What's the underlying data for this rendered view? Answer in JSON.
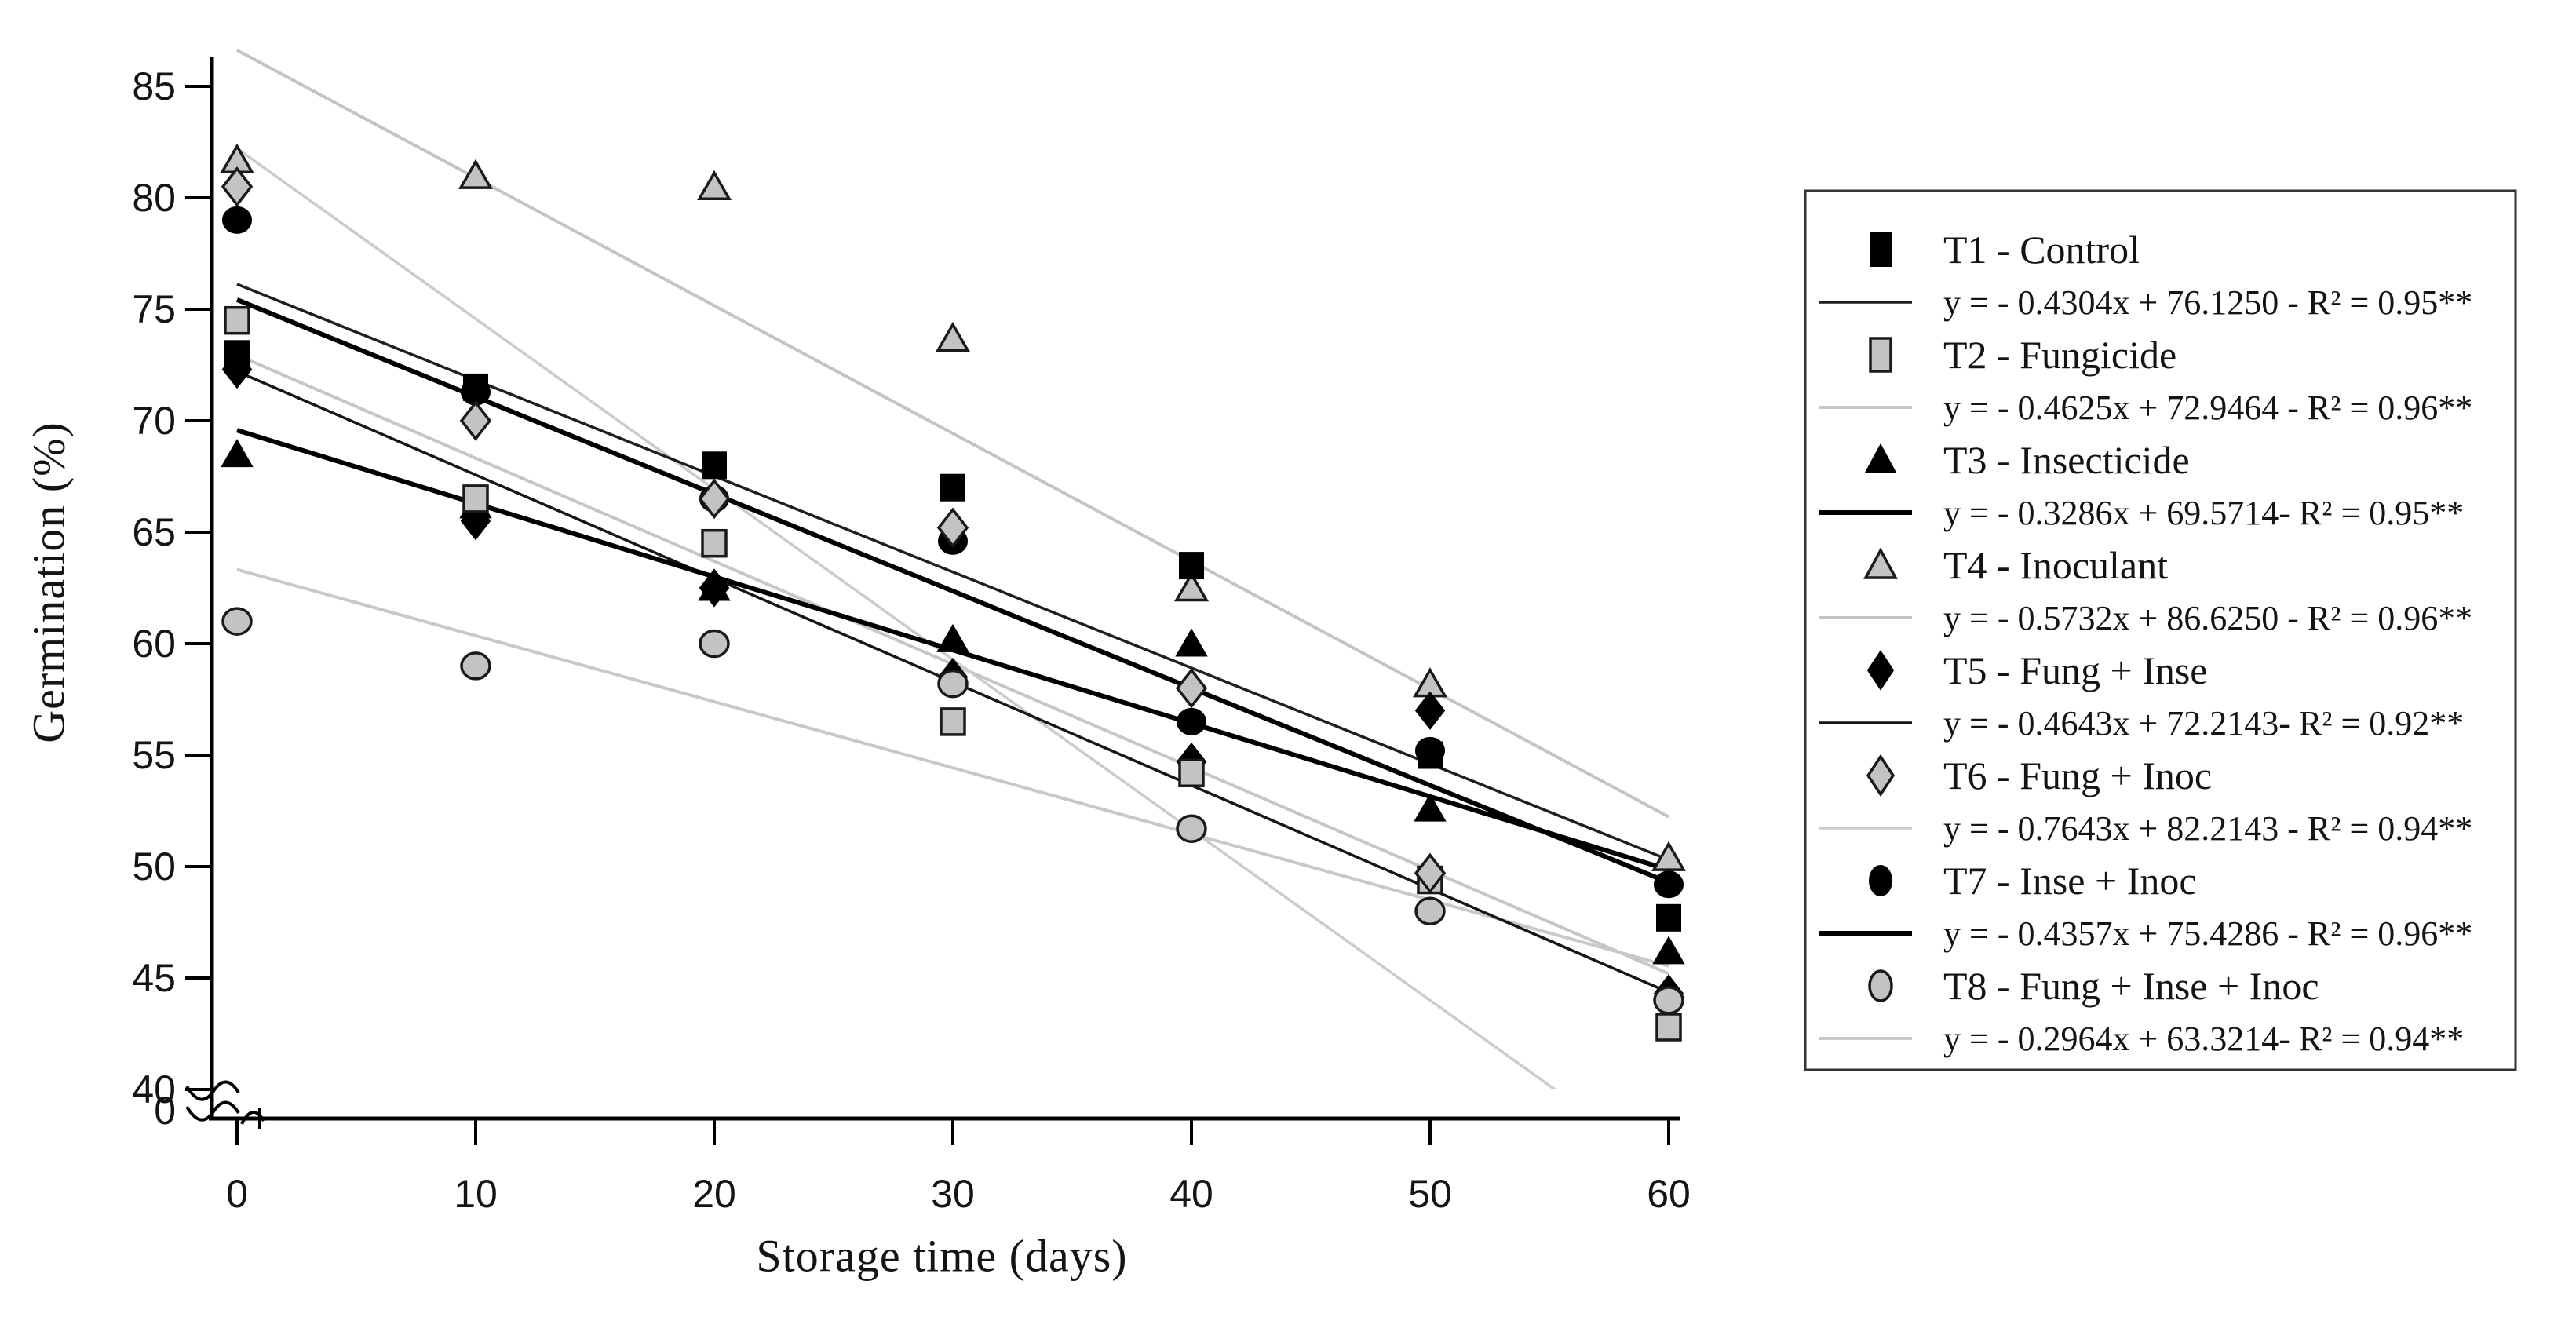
{
  "axes": {
    "y_label": "Germination (%)",
    "x_label": "Storage time (days)",
    "y_ticks": [
      85,
      80,
      75,
      70,
      65,
      60,
      55,
      50,
      45,
      40
    ],
    "y_break_label": "0",
    "x_ticks": [
      0,
      10,
      20,
      30,
      40,
      50,
      60
    ]
  },
  "chart_data": {
    "type": "scatter",
    "title": "",
    "xlabel": "Storage time (days)",
    "ylabel": "Germination (%)",
    "x": [
      0,
      10,
      20,
      30,
      40,
      50,
      60
    ],
    "xlim": [
      0,
      60
    ],
    "ylim": [
      40,
      85
    ],
    "y_axis_break": true,
    "y_break_label": "0",
    "grid": false,
    "legend_position": "right",
    "series": [
      {
        "id": "T1",
        "name": "T1 - Control",
        "equation": "y = - 0.4304x + 76.1250 - R² = 0.95**",
        "marker": "square",
        "fill": "#000000",
        "stroke": "#000000",
        "line_color": "#1f1f1f",
        "line_width": 3.5,
        "slope": -0.4304,
        "intercept": 76.125,
        "r2": "0.95**",
        "values": [
          73,
          71.5,
          68,
          67,
          63.5,
          55,
          47.7
        ]
      },
      {
        "id": "T2",
        "name": "T2 - Fungicide",
        "equation": "y = - 0.4625x + 72.9464 - R² = 0.96**",
        "marker": "square",
        "fill": "#c3c3c3",
        "stroke": "#1a1a1a",
        "line_color": "#c6c6c6",
        "line_width": 4,
        "slope": -0.4625,
        "intercept": 72.9464,
        "r2": "0.96**",
        "values": [
          74.5,
          66.5,
          64.5,
          56.5,
          54.2,
          49.4,
          42.8
        ]
      },
      {
        "id": "T3",
        "name": "T3 - Insecticide",
        "equation": "y = - 0.3286x + 69.5714- R² = 0.95**",
        "marker": "triangle",
        "fill": "#000000",
        "stroke": "#000000",
        "line_color": "#000000",
        "line_width": 6,
        "slope": -0.3286,
        "intercept": 69.5714,
        "r2": "0.95**",
        "values": [
          68.5,
          66.2,
          62.5,
          60.2,
          60,
          52.6,
          46.2
        ]
      },
      {
        "id": "T4",
        "name": "T4 - Inoculant",
        "equation": "y = - 0.5732x + 86.6250 - R² = 0.96**",
        "marker": "triangle",
        "fill": "#c3c3c3",
        "stroke": "#1a1a1a",
        "line_color": "#c4c4c4",
        "line_width": 4,
        "slope": -0.5732,
        "intercept": 86.625,
        "r2": "0.96**",
        "values": [
          81.7,
          81,
          80.5,
          73.7,
          62.5,
          58.2,
          50.4
        ]
      },
      {
        "id": "T5",
        "name": "T5 - Fung + Inse",
        "equation": "y = - 0.4643x + 72.2143- R² = 0.92**",
        "marker": "diamond",
        "fill": "#000000",
        "stroke": "#000000",
        "line_color": "#161616",
        "line_width": 3.5,
        "slope": -0.4643,
        "intercept": 72.2143,
        "r2": "0.92**",
        "values": [
          72.3,
          65.5,
          62.5,
          58.5,
          54.7,
          57,
          44.3
        ]
      },
      {
        "id": "T6",
        "name": "T6 - Fung + Inoc",
        "equation": "y = - 0.7643x + 82.2143 - R² = 0.94**",
        "marker": "diamond",
        "fill": "#c3c3c3",
        "stroke": "#1a1a1a",
        "line_color": "#cbcbcb",
        "line_width": 3.5,
        "slope": -0.7643,
        "intercept": 82.2143,
        "r2": "0.94**",
        "values": [
          80.5,
          70,
          66.5,
          65.2,
          58,
          49.7,
          null
        ]
      },
      {
        "id": "T7",
        "name": "T7 - Inse  + Inoc",
        "equation": "y = - 0.4357x + 75.4286 - R² = 0.96**",
        "marker": "circle",
        "fill": "#000000",
        "stroke": "#000000",
        "line_color": "#000000",
        "line_width": 6,
        "slope": -0.4357,
        "intercept": 75.4286,
        "r2": "0.96**",
        "values": [
          79,
          71.3,
          66.5,
          64.6,
          56.5,
          55.2,
          49.2
        ]
      },
      {
        "id": "T8",
        "name": "T8 - Fung + Inse  + Inoc",
        "equation": "y = - 0.2964x + 63.3214- R² = 0.94**",
        "marker": "circle",
        "fill": "#c3c3c3",
        "stroke": "#1a1a1a",
        "line_color": "#c8c8c8",
        "line_width": 4,
        "slope": -0.2964,
        "intercept": 63.3214,
        "r2": "0.94**",
        "values": [
          61,
          59,
          60,
          58.2,
          51.7,
          48,
          44
        ]
      }
    ],
    "line_draw_order": [
      "T2",
      "T4",
      "T6",
      "T8",
      "T1",
      "T5",
      "T3",
      "T7"
    ],
    "marker_draw_order": [
      "T4",
      "T3",
      "T5",
      "T2",
      "T7",
      "T1",
      "T6",
      "T8"
    ]
  }
}
